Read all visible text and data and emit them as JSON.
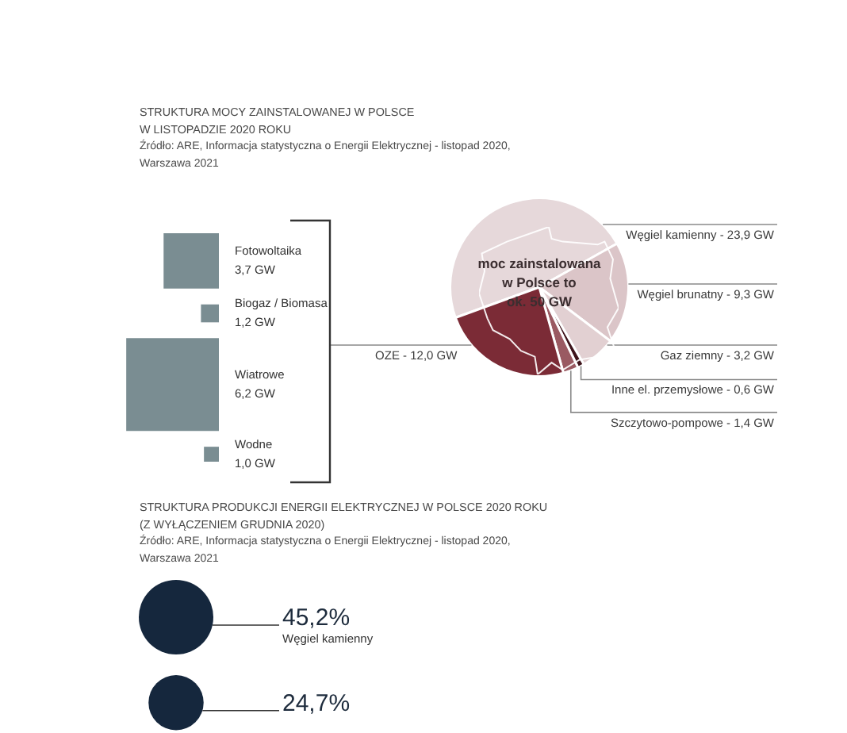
{
  "chart_data": [
    {
      "type": "pie",
      "title": "STRUKTURA MOCY ZAINSTALOWANEJ W POLSCE\nW LISTOPADZIE 2020 ROKU",
      "annotations": [
        "Źródło: ARE, Informacja statystyczna o Energii Elektrycznej - listopad 2020,\nWarszawa 2021",
        "moc zainstalowana\nw Polsce to\nok. 50 GW"
      ],
      "categories": [
        "Węgiel kamienny",
        "Węgiel brunatny",
        "Gaz ziemny",
        "Inne el. przemysłowe",
        "Szczytowo-pompowe",
        "OZE"
      ],
      "values": [
        23.9,
        9.3,
        3.2,
        0.6,
        1.4,
        12.0
      ],
      "value_labels": [
        "23,9 GW",
        "9,3 GW",
        "3,2 GW",
        "0,6 GW",
        "1,4 GW",
        "12,0 GW"
      ],
      "colors": [
        "#e6d8da",
        "#dbc5c8",
        "#e2d0d2",
        "#3e141b",
        "#9a5a62",
        "#7b2b36"
      ]
    },
    {
      "type": "other",
      "categories": [
        "Fotowoltaika",
        "Biogaz / Biomasa",
        "Wiatrowe",
        "Wodne"
      ],
      "values": [
        3.7,
        1.2,
        6.2,
        1.0
      ],
      "value_labels": [
        "3,7 GW",
        "1,2 GW",
        "6,2 GW",
        "1,0 GW"
      ],
      "color": "#7a8d92"
    },
    {
      "type": "other",
      "title": "STRUKTURA PRODUKCJI ENERGII ELEKTRYCZNEJ W POLSCE 2020 ROKU\n(Z WYŁĄCZENIEM GRUDNIA 2020)",
      "annotations": [
        "Źródło: ARE, Informacja statystyczna o Energii Elektrycznej - listopad 2020,\nWarszawa 2021"
      ],
      "categories": [
        "Węgiel kamienny",
        null
      ],
      "values": [
        45.2,
        24.7
      ],
      "value_labels": [
        "45,2%",
        "24,7%"
      ],
      "color": "#15273d"
    }
  ]
}
